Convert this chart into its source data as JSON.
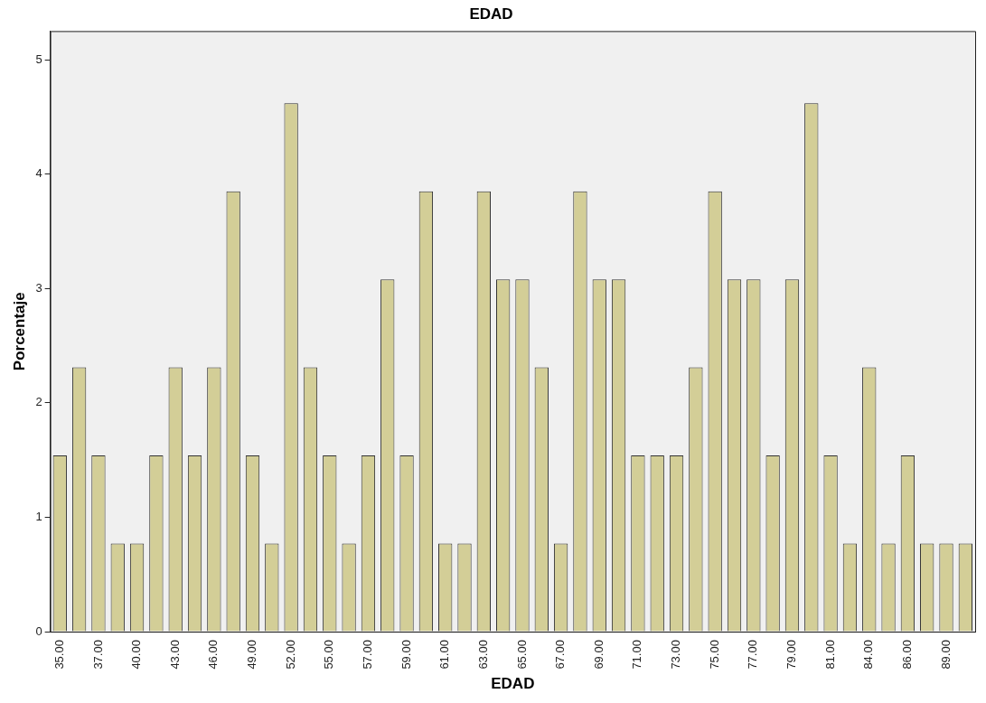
{
  "chart_data": {
    "type": "bar",
    "title": "EDAD",
    "xlabel": "EDAD",
    "ylabel": "Porcentaje",
    "categories": [
      "35.00",
      null,
      "37.00",
      null,
      "40.00",
      null,
      "43.00",
      null,
      "46.00",
      null,
      "49.00",
      null,
      "52.00",
      null,
      "55.00",
      null,
      "57.00",
      null,
      "59.00",
      null,
      "61.00",
      null,
      "63.00",
      null,
      "65.00",
      null,
      "67.00",
      null,
      "69.00",
      null,
      "71.00",
      null,
      "73.00",
      null,
      "75.00",
      null,
      "77.00",
      null,
      "79.00",
      null,
      "81.00",
      null,
      "84.00",
      null,
      "86.00",
      null,
      "89.00",
      null
    ],
    "values": [
      1.54,
      2.31,
      1.54,
      0.77,
      0.77,
      1.54,
      2.31,
      1.54,
      2.31,
      3.85,
      1.54,
      0.77,
      4.62,
      2.31,
      1.54,
      0.77,
      1.54,
      3.08,
      1.54,
      3.85,
      0.77,
      0.77,
      3.85,
      3.08,
      3.08,
      2.31,
      0.77,
      3.85,
      3.08,
      3.08,
      1.54,
      1.54,
      1.54,
      2.31,
      3.85,
      3.08,
      3.08,
      1.54,
      3.08,
      4.62,
      1.54,
      0.77,
      2.31,
      0.77,
      1.54,
      0.77,
      0.77,
      0.77
    ],
    "color": "#d3ce97",
    "ylim": [
      0,
      5.25
    ],
    "yticks": [
      0,
      1,
      2,
      3,
      4,
      5
    ],
    "grid": false,
    "legend": false
  }
}
